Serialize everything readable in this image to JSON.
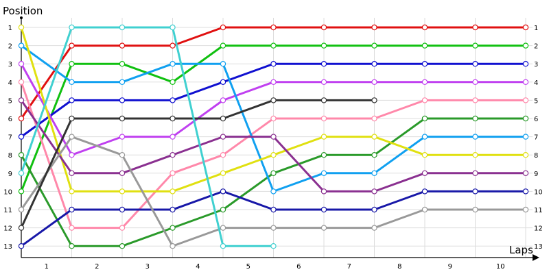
{
  "chart_data": {
    "type": "line",
    "ylabel": "Position",
    "xlabel": "Laps",
    "x_categories": [
      "1",
      "2",
      "3",
      "4",
      "5",
      "6",
      "7",
      "8",
      "9",
      "10"
    ],
    "x_points": [
      0,
      1,
      2,
      3,
      4,
      5,
      6,
      7,
      8,
      9,
      10
    ],
    "y_ticks": [
      1,
      2,
      3,
      4,
      5,
      6,
      7,
      8,
      9,
      10,
      11,
      12,
      13
    ],
    "y_range": [
      1,
      13
    ],
    "y_inverted": true,
    "grid": true,
    "right_labels": [
      "1",
      "2",
      "3",
      "4",
      "5",
      "6",
      "7",
      "8",
      "9",
      "10",
      "11",
      "12",
      "13"
    ],
    "series": [
      {
        "color": "#e01010",
        "values": [
          6,
          2,
          2,
          2,
          1,
          1,
          1,
          1,
          1,
          1,
          1
        ]
      },
      {
        "color": "#10c010",
        "values": [
          10,
          3,
          3,
          4,
          2,
          2,
          2,
          2,
          2,
          2,
          2
        ]
      },
      {
        "color": "#1010d0",
        "values": [
          7,
          5,
          5,
          5,
          4,
          3,
          3,
          3,
          3,
          3,
          3
        ]
      },
      {
        "color": "#c040f0",
        "values": [
          3,
          8,
          7,
          7,
          5,
          4,
          4,
          4,
          4,
          4,
          4
        ]
      },
      {
        "color": "#ff88aa",
        "values": [
          4,
          12,
          12,
          9,
          8,
          6,
          6,
          6,
          5,
          5,
          5
        ]
      },
      {
        "color": "#2a9a2a",
        "values": [
          8,
          13,
          13,
          12,
          11,
          9,
          8,
          8,
          6,
          6,
          6
        ]
      },
      {
        "color": "#10a0f0",
        "values": [
          2,
          4,
          4,
          3,
          3,
          10,
          9,
          9,
          7,
          7,
          7
        ]
      },
      {
        "color": "#e0e010",
        "values": [
          1,
          10,
          10,
          10,
          9,
          8,
          7,
          7,
          8,
          8,
          8
        ]
      },
      {
        "color": "#8a3090",
        "values": [
          5,
          9,
          9,
          8,
          7,
          7,
          10,
          10,
          9,
          9,
          9
        ]
      },
      {
        "color": "#1818a8",
        "values": [
          13,
          11,
          11,
          11,
          10,
          11,
          11,
          11,
          10,
          10,
          10
        ]
      },
      {
        "color": "#999999",
        "values": [
          11,
          7,
          8,
          13,
          12,
          12,
          12,
          12,
          11,
          11,
          11
        ]
      },
      {
        "color": "#333333",
        "values": [
          12,
          6,
          6,
          6,
          6,
          5,
          5,
          5,
          null,
          null,
          null
        ]
      },
      {
        "color": "#40d0d0",
        "values": [
          9,
          1,
          1,
          1,
          13,
          13,
          null,
          null,
          null,
          null,
          null
        ]
      }
    ]
  }
}
